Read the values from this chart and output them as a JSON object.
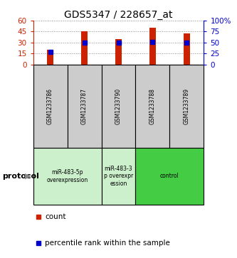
{
  "title": "GDS5347 / 228657_at",
  "samples": [
    "GSM1233786",
    "GSM1233787",
    "GSM1233790",
    "GSM1233788",
    "GSM1233789"
  ],
  "counts": [
    20,
    45,
    35,
    50,
    43
  ],
  "percentiles": [
    28,
    50,
    49,
    52,
    49
  ],
  "left_ylim": [
    0,
    60
  ],
  "right_ylim": [
    0,
    100
  ],
  "left_yticks": [
    0,
    15,
    30,
    45,
    60
  ],
  "right_yticks": [
    0,
    25,
    50,
    75,
    100
  ],
  "right_yticklabels": [
    "0",
    "25",
    "50",
    "75",
    "100%"
  ],
  "bar_color": "#cc2200",
  "dot_color": "#0000cc",
  "protocol_groups": [
    {
      "label": "miR-483-5p\noverexpression",
      "indices": [
        0,
        1
      ],
      "color": "#ccf0cc"
    },
    {
      "label": "miR-483-3\np overexpr\nession",
      "indices": [
        2
      ],
      "color": "#ccf0cc"
    },
    {
      "label": "control",
      "indices": [
        3,
        4
      ],
      "color": "#44cc44"
    }
  ],
  "protocol_label": "protocol",
  "legend_count_label": "count",
  "legend_percentile_label": "percentile rank within the sample",
  "title_fontsize": 10,
  "axis_label_color_left": "#cc2200",
  "axis_label_color_right": "#0000cc",
  "sample_box_color": "#cccccc",
  "background_color": "#ffffff"
}
